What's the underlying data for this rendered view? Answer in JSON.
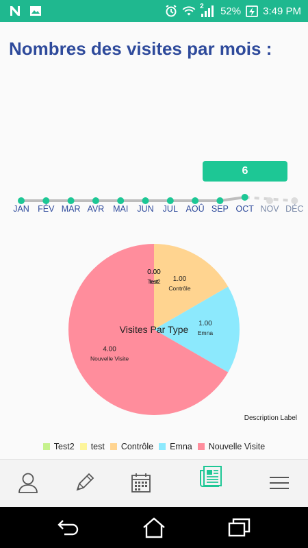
{
  "status_bar": {
    "left_icons": [
      "n-icon",
      "image-icon"
    ],
    "right_icons": [
      "alarm-icon",
      "wifi-icon",
      "signal-icon",
      "battery-charging-icon"
    ],
    "sim_label": "2",
    "battery": "52%",
    "time": "3:49 PM",
    "background": "#1fb88f"
  },
  "page": {
    "title": "Nombres des visites par mois :"
  },
  "timeline": {
    "selected_value": "6",
    "months": [
      "JAN",
      "FÉV",
      "MAR",
      "AVR",
      "MAI",
      "JUN",
      "JUL",
      "AOÛ",
      "SEP",
      "OCT",
      "NOV",
      "DÉC"
    ],
    "values": [
      0,
      0,
      0,
      0,
      0,
      0,
      0,
      0,
      0,
      6,
      null,
      null
    ],
    "selected_month": "OCT",
    "accent": "#1dc795"
  },
  "chart_data": {
    "type": "pie",
    "center_text": "Visites Par Type",
    "description": "Description Label",
    "slices": [
      {
        "label": "Test2",
        "value": 0.0,
        "value_label": "0.00",
        "color": "#c6f28d"
      },
      {
        "label": "test",
        "value": 0.0,
        "value_label": "0.00",
        "color": "#fdf59a"
      },
      {
        "label": "Contrôle",
        "value": 1.0,
        "value_label": "1.00",
        "color": "#ffd490"
      },
      {
        "label": "Emna",
        "value": 1.0,
        "value_label": "1.00",
        "color": "#8ce9fd"
      },
      {
        "label": "Nouvelle Visite",
        "value": 4.0,
        "value_label": "4.00",
        "color": "#ff8d9c"
      }
    ],
    "legend_position": "bottom-center"
  },
  "bottom_nav": {
    "items": [
      "profile-icon",
      "edit-icon",
      "calendar-icon",
      "report-icon",
      "menu-icon"
    ],
    "active": "report-icon"
  },
  "system_nav": {
    "items": [
      "back-icon",
      "home-icon",
      "recents-icon"
    ]
  }
}
